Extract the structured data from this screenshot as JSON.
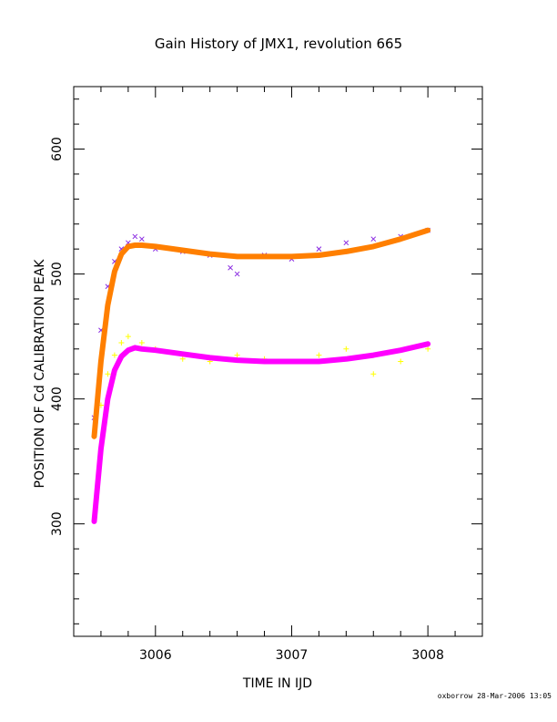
{
  "chart_data": {
    "type": "scatter",
    "title": "Gain History of JMX1, revolution 665",
    "xlabel": "TIME IN IJD",
    "ylabel": "POSITION OF Cd CALIBRATION PEAK",
    "xlim": [
      3005.4,
      3008.4
    ],
    "ylim": [
      210,
      650
    ],
    "x_ticks_labeled": [
      3006,
      3007,
      3008
    ],
    "y_ticks_labeled": [
      300,
      400,
      500,
      600
    ],
    "grid": false,
    "legend": "none",
    "footer": "oxborrow 28-Mar-2006 13:05",
    "series": [
      {
        "marker": "x",
        "color": "#8a2be2",
        "kind": "scatter",
        "x": [
          3005.55,
          3005.6,
          3005.65,
          3005.7,
          3005.75,
          3005.8,
          3005.85,
          3005.9,
          3006.0,
          3006.2,
          3006.4,
          3006.55,
          3006.6,
          3006.8,
          3007.0,
          3007.2,
          3007.4,
          3007.6,
          3007.8,
          3008.0
        ],
        "y": [
          385,
          455,
          490,
          510,
          520,
          525,
          530,
          528,
          520,
          518,
          515,
          505,
          500,
          515,
          512,
          520,
          525,
          528,
          530,
          535
        ]
      },
      {
        "marker": "+",
        "color": "#ffff00",
        "kind": "scatter",
        "x": [
          3005.55,
          3005.6,
          3005.65,
          3005.7,
          3005.75,
          3005.8,
          3005.9,
          3006.0,
          3006.2,
          3006.4,
          3006.6,
          3006.8,
          3007.0,
          3007.2,
          3007.4,
          3007.6,
          3007.8,
          3008.0
        ],
        "y": [
          370,
          395,
          420,
          435,
          445,
          450,
          445,
          440,
          432,
          430,
          435,
          432,
          430,
          435,
          440,
          420,
          430,
          440
        ]
      },
      {
        "marker": "o",
        "color": "#ff7f00",
        "kind": "fit",
        "x": [
          3005.55,
          3005.6,
          3005.65,
          3005.7,
          3005.75,
          3005.8,
          3005.85,
          3005.9,
          3006.0,
          3006.2,
          3006.4,
          3006.6,
          3006.8,
          3007.0,
          3007.2,
          3007.4,
          3007.6,
          3007.8,
          3008.0
        ],
        "y": [
          370,
          430,
          475,
          502,
          516,
          522,
          523,
          523,
          522,
          519,
          516,
          514,
          514,
          514,
          515,
          518,
          522,
          528,
          535
        ]
      },
      {
        "marker": "o",
        "color": "#ff00ff",
        "kind": "fit",
        "x": [
          3005.55,
          3005.6,
          3005.65,
          3005.7,
          3005.75,
          3005.8,
          3005.85,
          3005.9,
          3006.0,
          3006.2,
          3006.4,
          3006.6,
          3006.8,
          3007.0,
          3007.2,
          3007.4,
          3007.6,
          3007.8,
          3008.0
        ],
        "y": [
          302,
          360,
          400,
          423,
          434,
          439,
          441,
          440,
          439,
          436,
          433,
          431,
          430,
          430,
          430,
          432,
          435,
          439,
          444
        ]
      }
    ]
  }
}
